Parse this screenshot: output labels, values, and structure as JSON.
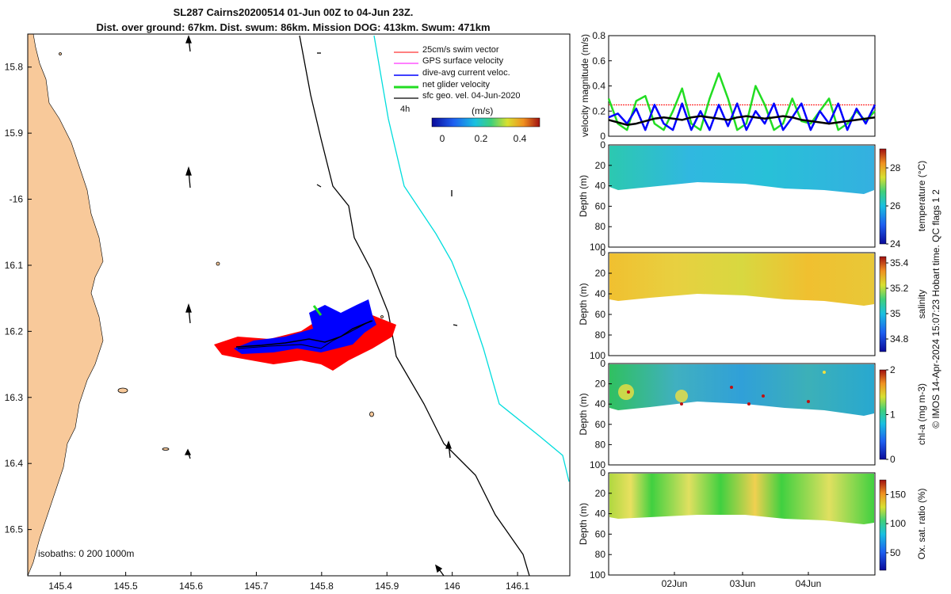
{
  "title_line1": "SL287 Cairns20200514 01-Jun 00Z to 04-Jun 23Z.",
  "title_line2": "Dist. over ground: 67km. Dist. swum: 86km. Mission DOG: 413km. Swum: 471km",
  "colors": {
    "land": "#f8c99a",
    "swim": "#ff0000",
    "gps": "#ff00ff",
    "current": "#0000ff",
    "net": "#22dd22",
    "sfc": "#000000",
    "isobath200": "#000000",
    "isobath1000": "#00dddd"
  },
  "chart_data": [
    {
      "type": "map",
      "lon_ticks": [
        "145.4",
        "145.5",
        "145.6",
        "145.7",
        "145.8",
        "145.9",
        "146",
        "146.1"
      ],
      "lat_ticks": [
        "15.8",
        "15.9",
        "-16",
        "16.1",
        "16.2",
        "16.3",
        "16.4",
        "16.5"
      ],
      "xlim": [
        145.35,
        146.18
      ],
      "ylim": [
        -16.57,
        -15.75
      ],
      "legend": [
        "25cm/s swim vector",
        "GPS surface velocity",
        "dive-avg current veloc.",
        "net glider velocity",
        "sfc geo. vel. 04-Jun-2020"
      ],
      "legend_scale": "4h",
      "colorbar": {
        "label": "(m/s)",
        "ticks": [
          "0",
          "0.2",
          "0.4"
        ],
        "range": [
          -0.08,
          0.5
        ]
      },
      "isobaths_label": "isobaths: 0   200   1000m",
      "track": [
        [
          145.67,
          -16.23
        ],
        [
          145.72,
          -16.23
        ],
        [
          145.78,
          -16.225
        ],
        [
          145.82,
          -16.21
        ],
        [
          145.86,
          -16.2
        ],
        [
          145.87,
          -16.19
        ]
      ]
    },
    {
      "type": "line",
      "ylabel": "velocity magnitude (m/s)",
      "ylim": [
        0,
        0.8
      ],
      "yticks": [
        "0",
        "0.2",
        "0.4",
        "0.6",
        "0.8"
      ],
      "swim_reference": 0.25,
      "series": [
        {
          "name": "net glider velocity",
          "values": [
            0.3,
            0.1,
            0.05,
            0.28,
            0.32,
            0.1,
            0.05,
            0.2,
            0.38,
            0.1,
            0.05,
            0.3,
            0.5,
            0.3,
            0.05,
            0.1,
            0.4,
            0.25,
            0.05,
            0.1,
            0.3,
            0.12,
            0.1,
            0.2,
            0.3,
            0.05,
            0.1,
            0.2,
            0.12,
            0.2
          ]
        },
        {
          "name": "dive-avg current veloc.",
          "values": [
            0.15,
            0.18,
            0.1,
            0.22,
            0.05,
            0.25,
            0.1,
            0.05,
            0.26,
            0.05,
            0.2,
            0.05,
            0.25,
            0.08,
            0.26,
            0.05,
            0.2,
            0.1,
            0.26,
            0.05,
            0.15,
            0.26,
            0.05,
            0.2,
            0.1,
            0.26,
            0.05,
            0.22,
            0.1,
            0.25
          ]
        },
        {
          "name": "sfc geo. vel.",
          "values": [
            0.13,
            0.11,
            0.09,
            0.1,
            0.12,
            0.14,
            0.15,
            0.14,
            0.13,
            0.15,
            0.16,
            0.15,
            0.14,
            0.13,
            0.15,
            0.16,
            0.15,
            0.14,
            0.15,
            0.16,
            0.15,
            0.13,
            0.12,
            0.11,
            0.1,
            0.11,
            0.12,
            0.13,
            0.14,
            0.15
          ]
        }
      ]
    },
    {
      "type": "heatmap",
      "ylabel": "Depth (m)",
      "cbar_label": "temperature (°C)",
      "yticks": [
        "0",
        "20",
        "40",
        "60",
        "80",
        "100"
      ],
      "cbar_ticks": [
        "24",
        "26",
        "28"
      ]
    },
    {
      "type": "heatmap",
      "ylabel": "Depth (m)",
      "cbar_label": "salinity",
      "yticks": [
        "0",
        "20",
        "40",
        "60",
        "80",
        "100"
      ],
      "cbar_ticks": [
        "34.8",
        "35",
        "35.2",
        "35.4"
      ]
    },
    {
      "type": "heatmap",
      "ylabel": "Depth (m)",
      "cbar_label": "chl-a (mg m-3)",
      "yticks": [
        "0",
        "20",
        "40",
        "60",
        "80",
        "100"
      ],
      "cbar_ticks": [
        "0",
        "1",
        "2"
      ]
    },
    {
      "type": "heatmap",
      "ylabel": "Depth (m)",
      "cbar_label": "Ox. sat. ratio (%)",
      "yticks": [
        "0",
        "20",
        "40",
        "60",
        "80",
        "100"
      ],
      "cbar_ticks": [
        "50",
        "100",
        "150"
      ],
      "xticks": [
        "02Jun",
        "03Jun",
        "04Jun"
      ]
    }
  ],
  "credit": "© IMOS 14-Apr-2024 15:07:23 Hobart time. QC flags 1  2"
}
